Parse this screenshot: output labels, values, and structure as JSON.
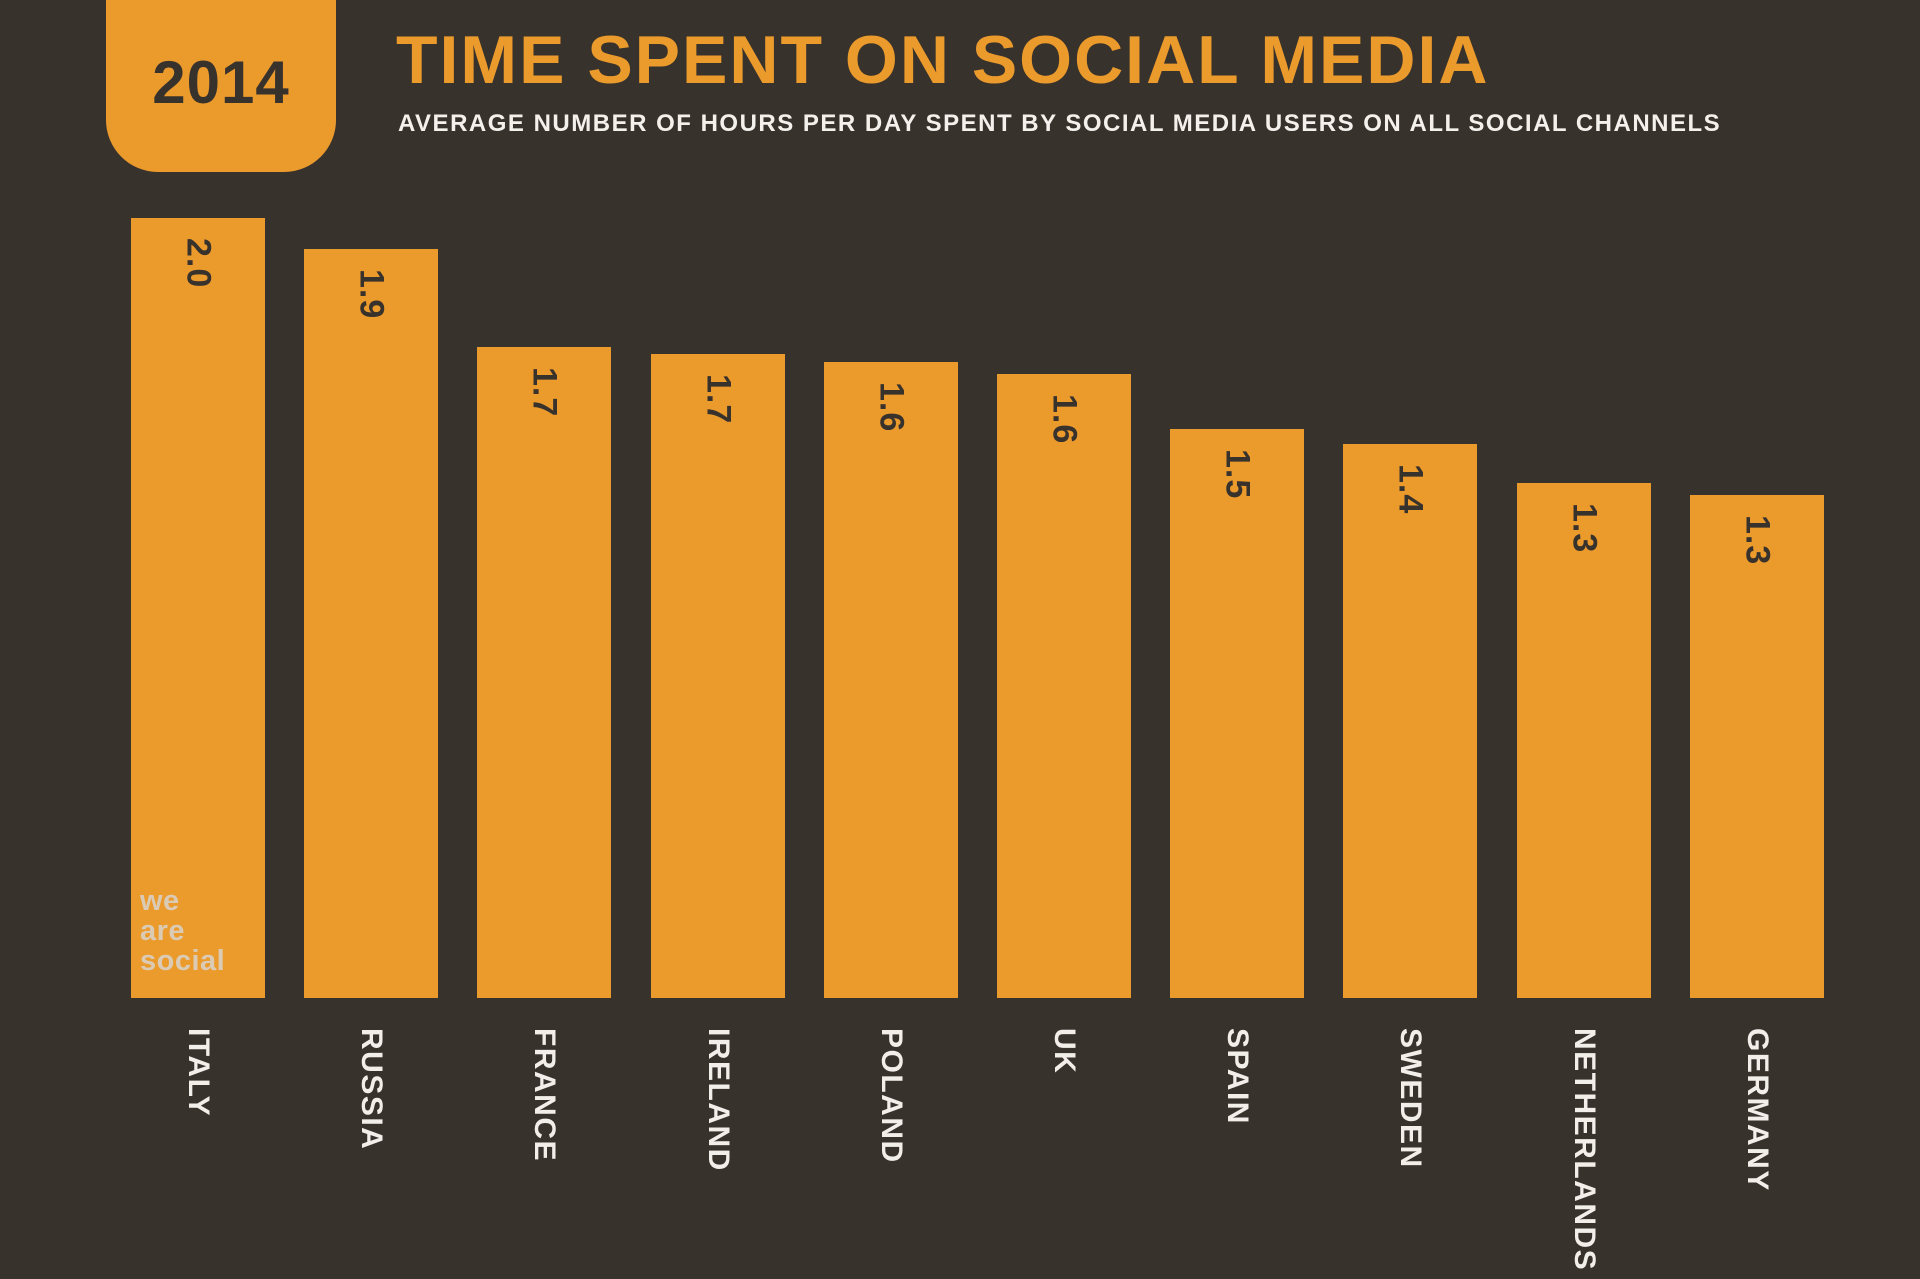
{
  "badge": {
    "year": "2014"
  },
  "header": {
    "title": "TIME SPENT ON SOCIAL MEDIA",
    "subtitle": "AVERAGE NUMBER OF HOURS PER DAY SPENT BY SOCIAL MEDIA USERS ON ALL SOCIAL CHANNELS"
  },
  "watermark": {
    "lines": [
      "we",
      "are",
      "social"
    ]
  },
  "colors": {
    "background": "#38322D",
    "accent_orange": "#EB9A2C",
    "bar": "#EB9A2C",
    "value_text": "#38322D",
    "category_text": "#F2EEE9",
    "subtitle_text": "#F4F1ED"
  },
  "chart_data": {
    "type": "bar",
    "title": "TIME SPENT ON SOCIAL MEDIA",
    "subtitle": "AVERAGE NUMBER OF HOURS PER DAY SPENT BY SOCIAL MEDIA USERS ON ALL SOCIAL CHANNELS",
    "year": "2014",
    "unit": "hours per day",
    "categories": [
      "ITALY",
      "RUSSIA",
      "FRANCE",
      "IRELAND",
      "POLAND",
      "UK",
      "SPAIN",
      "SWEDEN",
      "NETHERLANDS",
      "GERMANY"
    ],
    "values": [
      2.0,
      1.9,
      1.7,
      1.7,
      1.6,
      1.6,
      1.5,
      1.4,
      1.3,
      1.3
    ],
    "value_labels": [
      "2.0",
      "1.9",
      "1.7",
      "1.7",
      "1.6",
      "1.6",
      "1.5",
      "1.4",
      "1.3",
      "1.3"
    ],
    "values_precise": [
      2.0,
      1.92,
      1.67,
      1.65,
      1.63,
      1.6,
      1.46,
      1.42,
      1.32,
      1.29
    ],
    "ylim": [
      0,
      2.0
    ],
    "xlabel": "",
    "ylabel": "",
    "grid": false,
    "legend": false,
    "bar_color": "#EB9A2C",
    "value_label_rotation_degrees": 90,
    "category_label_rotation_degrees": 90
  }
}
